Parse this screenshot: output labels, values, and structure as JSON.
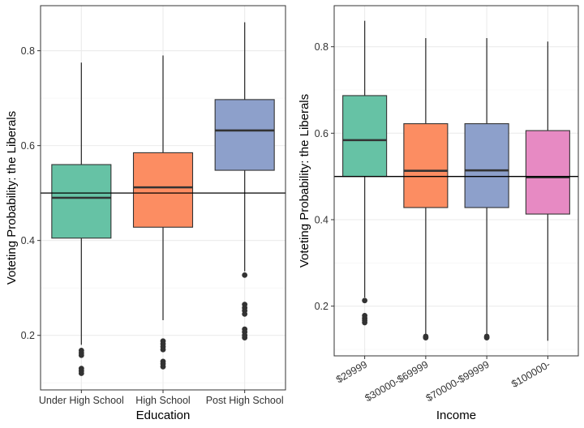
{
  "chart_data": [
    {
      "type": "box",
      "xlabel": "Education",
      "ylabel": "Voteting Probability: the Liberals",
      "yticks": [
        0.2,
        0.4,
        0.6,
        0.8
      ],
      "ylim": [
        0.085,
        0.895
      ],
      "reference_line": 0.5,
      "grid": true,
      "categories": [
        "Under High School",
        "High School",
        "Post High School"
      ],
      "colors": [
        "#66C2A5",
        "#FC8D62",
        "#8DA0CB"
      ],
      "boxes": [
        {
          "q1": 0.405,
          "median": 0.49,
          "q3": 0.56,
          "whisker_low": 0.18,
          "whisker_high": 0.775,
          "outliers": [
            0.168,
            0.163,
            0.158,
            0.13,
            0.125,
            0.12
          ]
        },
        {
          "q1": 0.428,
          "median": 0.512,
          "q3": 0.585,
          "whisker_low": 0.232,
          "whisker_high": 0.79,
          "outliers": [
            0.188,
            0.182,
            0.176,
            0.17,
            0.145,
            0.14,
            0.134
          ]
        },
        {
          "q1": 0.548,
          "median": 0.632,
          "q3": 0.697,
          "whisker_low": 0.335,
          "whisker_high": 0.86,
          "outliers": [
            0.327,
            0.265,
            0.258,
            0.252,
            0.245,
            0.213,
            0.207,
            0.2,
            0.195
          ]
        }
      ]
    },
    {
      "type": "box",
      "xlabel": "Income",
      "ylabel": "Voteting Probability: the Liberals",
      "yticks": [
        0.2,
        0.4,
        0.6,
        0.8
      ],
      "ylim": [
        0.085,
        0.895
      ],
      "reference_line": 0.5,
      "grid": true,
      "categories": [
        "$29999",
        "$30000-$69999",
        "$70000-$99999",
        "$100000-"
      ],
      "colors": [
        "#66C2A5",
        "#FC8D62",
        "#8DA0CB",
        "#E78AC3"
      ],
      "boxes": [
        {
          "q1": 0.5,
          "median": 0.584,
          "q3": 0.687,
          "whisker_low": 0.22,
          "whisker_high": 0.86,
          "outliers": [
            0.213,
            0.178,
            0.172,
            0.167,
            0.162
          ]
        },
        {
          "q1": 0.428,
          "median": 0.513,
          "q3": 0.622,
          "whisker_low": 0.135,
          "whisker_high": 0.82,
          "outliers": [
            0.13,
            0.127
          ]
        },
        {
          "q1": 0.428,
          "median": 0.514,
          "q3": 0.622,
          "whisker_low": 0.135,
          "whisker_high": 0.82,
          "outliers": [
            0.13,
            0.127
          ]
        },
        {
          "q1": 0.413,
          "median": 0.498,
          "q3": 0.606,
          "whisker_low": 0.12,
          "whisker_high": 0.812,
          "outliers": []
        }
      ]
    }
  ]
}
